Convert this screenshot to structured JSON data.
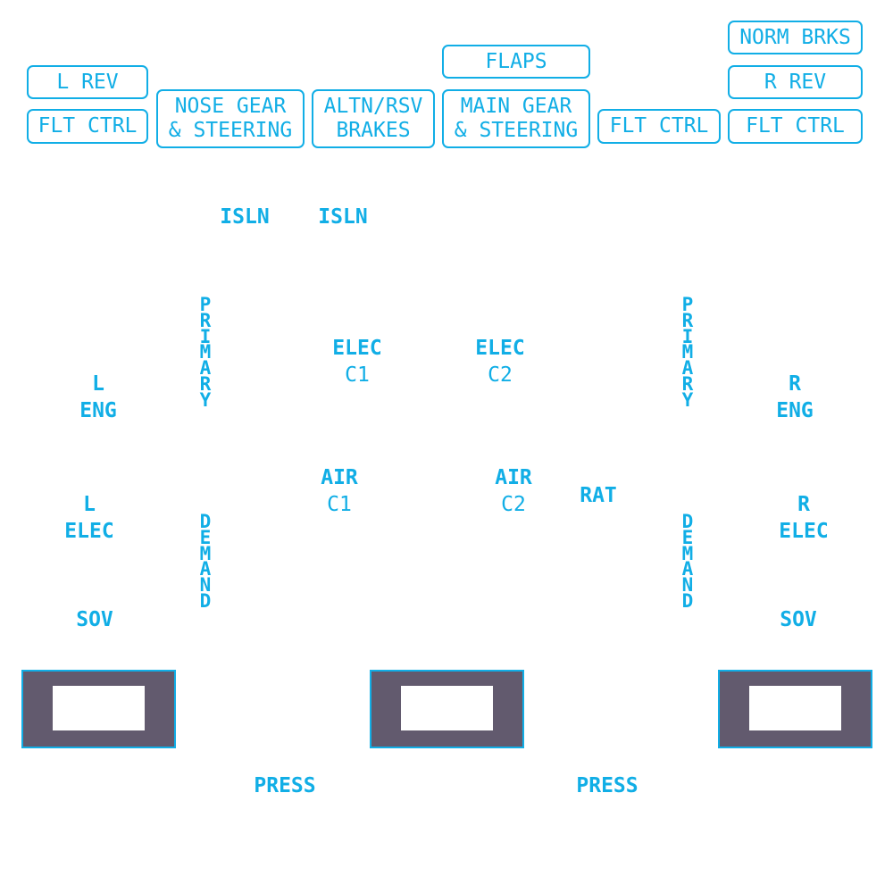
{
  "buttons": {
    "l_rev": "L REV",
    "flt_ctrl_left": "FLT CTRL",
    "nose_gear_line1": "NOSE GEAR",
    "nose_gear_line2": "& STEERING",
    "altn_rsv_line1": "ALTN/RSV",
    "altn_rsv_line2": "BRAKES",
    "flaps": "FLAPS",
    "main_gear_line1": "MAIN GEAR",
    "main_gear_line2": "& STEERING",
    "flt_ctrl_center": "FLT CTRL",
    "norm_brks": "NORM BRKS",
    "r_rev": "R REV",
    "flt_ctrl_right": "FLT CTRL"
  },
  "labels": {
    "isln_left": "ISLN",
    "isln_right": "ISLN",
    "primary_left": "PRIMARY",
    "primary_right": "PRIMARY",
    "demand_left": "DEMAND",
    "demand_right": "DEMAND",
    "elec_c1_line1": "ELEC",
    "elec_c1_line2": "C1",
    "elec_c2_line1": "ELEC",
    "elec_c2_line2": "C2",
    "l_eng_line1": "L",
    "l_eng_line2": "ENG",
    "r_eng_line1": "R",
    "r_eng_line2": "ENG",
    "air_c1_line1": "AIR",
    "air_c1_line2": "C1",
    "air_c2_line1": "AIR",
    "air_c2_line2": "C2",
    "rat": "RAT",
    "l_elec_line1": "L",
    "l_elec_line2": "ELEC",
    "r_elec_line1": "R",
    "r_elec_line2": "ELEC",
    "sov_left": "SOV",
    "sov_right": "SOV",
    "press_left": "PRESS",
    "press_right": "PRESS"
  },
  "colors": {
    "accent": "#11aee6",
    "panel_fill": "#625a6e",
    "background": "#ffffff"
  }
}
